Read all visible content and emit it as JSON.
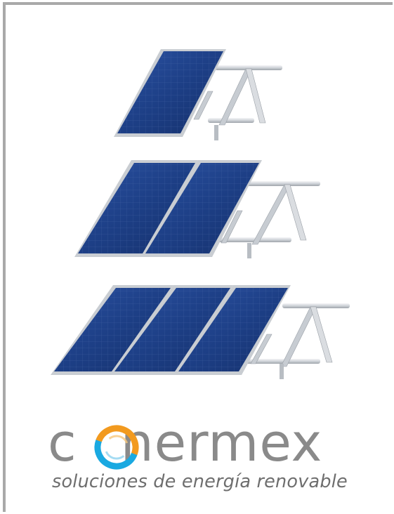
{
  "brand": {
    "name_prefix": "c",
    "name_suffix": "nermex",
    "tagline": "soluciones de energía renovable",
    "logo_icon": "swirl-o-icon"
  },
  "colors": {
    "frame": "#a9a9a9",
    "brand_gray": "#8a8a8a",
    "panel_blue": "#1d3f86",
    "panel_cell_line": "#5d79b6",
    "aluminum": "#cfd3d8",
    "swirl_orange": "#f29a1f",
    "swirl_blue": "#1aa9e1"
  },
  "illustration": {
    "subject": "solar-panel-mounting-structures",
    "arrays": [
      {
        "panels": 1
      },
      {
        "panels": 2
      },
      {
        "panels": 3
      }
    ]
  }
}
